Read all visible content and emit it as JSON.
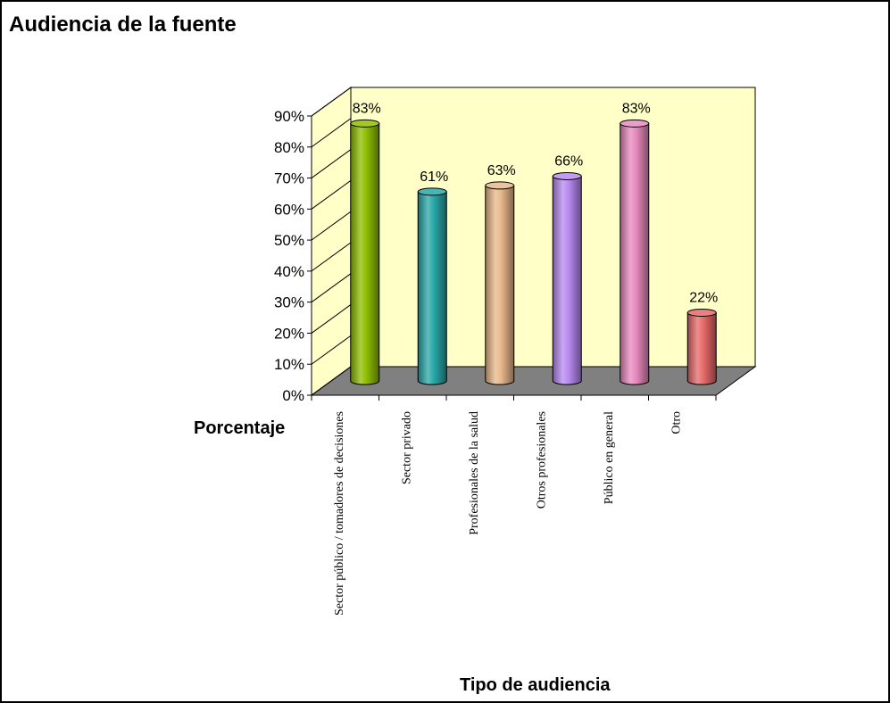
{
  "chart_data": {
    "type": "bar",
    "title": "Audiencia de la fuente",
    "xlabel": "Tipo de audiencia",
    "ylabel": "Porcentaje",
    "categories": [
      "Sector público / tomadores de decisiones",
      "Sector privado",
      "Profesionales de la salud",
      "Otros profesionales",
      "Público en general",
      "Otro"
    ],
    "values": [
      83,
      61,
      63,
      66,
      83,
      22
    ],
    "data_labels": [
      "83%",
      "61%",
      "63%",
      "66%",
      "83%",
      "22%"
    ],
    "colors": [
      "#8fbf00",
      "#2aa8a8",
      "#e8b88a",
      "#b88af0",
      "#e88abf",
      "#e86a6a"
    ],
    "ylim": [
      0,
      90
    ],
    "yticks": [
      0,
      10,
      20,
      30,
      40,
      50,
      60,
      70,
      80,
      90
    ],
    "ytick_labels": [
      "0%",
      "10%",
      "20%",
      "30%",
      "40%",
      "50%",
      "60%",
      "70%",
      "80%",
      "90%"
    ],
    "wall_color": "#ffffc8",
    "floor_color": "#808080",
    "grid": false,
    "legend": "none",
    "style": "3d-cylinder"
  }
}
